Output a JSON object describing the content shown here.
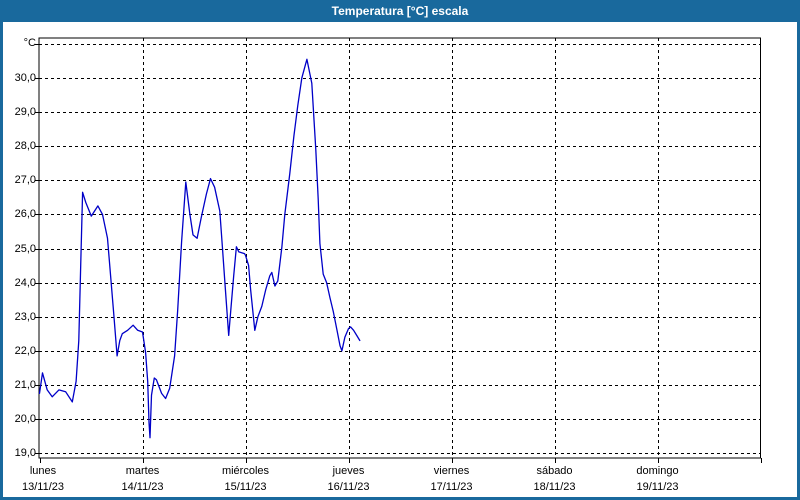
{
  "window": {
    "title": "Temperatura [°C] escala"
  },
  "colors": {
    "frame": "#19699d",
    "titlebar_bg": "#19699d",
    "title_text": "#ffffff",
    "line": "#0000c8",
    "grid": "#000000",
    "plot_bg": "#ffffff"
  },
  "chart_data": {
    "type": "line",
    "title": "Temperatura [°C] escala",
    "grid": "dashed",
    "legend": "none",
    "y_axis": {
      "unit_label": "°C",
      "ylim": [
        19,
        31
      ],
      "max_gridline": 31,
      "ticks": [
        {
          "value": 30,
          "label": "30,0"
        },
        {
          "value": 29,
          "label": "29,0"
        },
        {
          "value": 28,
          "label": "28,0"
        },
        {
          "value": 27,
          "label": "27,0"
        },
        {
          "value": 26,
          "label": "26,0"
        },
        {
          "value": 25,
          "label": "25,0"
        },
        {
          "value": 24,
          "label": "24,0"
        },
        {
          "value": 23,
          "label": "23,0"
        },
        {
          "value": 22,
          "label": "22,0"
        },
        {
          "value": 21,
          "label": "21,0"
        },
        {
          "value": 20,
          "label": "20,0"
        },
        {
          "value": 19,
          "label": "19,0"
        }
      ]
    },
    "x_axis": {
      "xlim_days": [
        0,
        7
      ],
      "days": [
        {
          "name": "lunes",
          "date": "13/11/23"
        },
        {
          "name": "martes",
          "date": "14/11/23"
        },
        {
          "name": "miércoles",
          "date": "15/11/23"
        },
        {
          "name": "jueves",
          "date": "16/11/23"
        },
        {
          "name": "viernes",
          "date": "17/11/23"
        },
        {
          "name": "sábado",
          "date": "18/11/23"
        },
        {
          "name": "domingo",
          "date": "19/11/23"
        }
      ]
    },
    "series": [
      {
        "name": "Temperatura",
        "color": "#0000c8",
        "points": [
          [
            0.0,
            20.75
          ],
          [
            0.029,
            21.35
          ],
          [
            0.075,
            20.85
          ],
          [
            0.123,
            20.65
          ],
          [
            0.188,
            20.85
          ],
          [
            0.253,
            20.8
          ],
          [
            0.318,
            20.5
          ],
          [
            0.355,
            21.1
          ],
          [
            0.382,
            22.3
          ],
          [
            0.4,
            24.5
          ],
          [
            0.418,
            26.65
          ],
          [
            0.45,
            26.35
          ],
          [
            0.503,
            25.95
          ],
          [
            0.567,
            26.25
          ],
          [
            0.612,
            26.0
          ],
          [
            0.66,
            25.3
          ],
          [
            0.69,
            24.2
          ],
          [
            0.72,
            23.1
          ],
          [
            0.753,
            21.85
          ],
          [
            0.78,
            22.3
          ],
          [
            0.804,
            22.5
          ],
          [
            0.855,
            22.6
          ],
          [
            0.909,
            22.75
          ],
          [
            0.953,
            22.6
          ],
          [
            1.0,
            22.55
          ],
          [
            1.03,
            21.95
          ],
          [
            1.05,
            21.1
          ],
          [
            1.063,
            19.9
          ],
          [
            1.073,
            19.45
          ],
          [
            1.087,
            20.7
          ],
          [
            1.115,
            21.2
          ],
          [
            1.135,
            21.15
          ],
          [
            1.185,
            20.75
          ],
          [
            1.224,
            20.6
          ],
          [
            1.264,
            20.9
          ],
          [
            1.312,
            21.85
          ],
          [
            1.342,
            23.2
          ],
          [
            1.38,
            25.2
          ],
          [
            1.42,
            26.95
          ],
          [
            1.46,
            26.0
          ],
          [
            1.49,
            25.4
          ],
          [
            1.53,
            25.3
          ],
          [
            1.57,
            25.9
          ],
          [
            1.62,
            26.6
          ],
          [
            1.66,
            27.05
          ],
          [
            1.7,
            26.8
          ],
          [
            1.75,
            26.1
          ],
          [
            1.777,
            25.0
          ],
          [
            1.8,
            24.0
          ],
          [
            1.837,
            22.45
          ],
          [
            1.86,
            23.3
          ],
          [
            1.885,
            24.2
          ],
          [
            1.912,
            25.05
          ],
          [
            1.935,
            24.9
          ],
          [
            1.99,
            24.85
          ],
          [
            2.0,
            24.8
          ],
          [
            2.03,
            24.5
          ],
          [
            2.05,
            23.8
          ],
          [
            2.09,
            22.6
          ],
          [
            2.12,
            23.0
          ],
          [
            2.158,
            23.3
          ],
          [
            2.197,
            23.8
          ],
          [
            2.236,
            24.2
          ],
          [
            2.255,
            24.3
          ],
          [
            2.285,
            23.9
          ],
          [
            2.314,
            24.05
          ],
          [
            2.353,
            25.05
          ],
          [
            2.382,
            26.0
          ],
          [
            2.43,
            27.2
          ],
          [
            2.47,
            28.3
          ],
          [
            2.508,
            29.2
          ],
          [
            2.547,
            30.0
          ],
          [
            2.596,
            30.55
          ],
          [
            2.644,
            29.85
          ],
          [
            2.683,
            27.9
          ],
          [
            2.706,
            26.45
          ],
          [
            2.722,
            25.15
          ],
          [
            2.754,
            24.25
          ],
          [
            2.787,
            24.0
          ],
          [
            2.82,
            23.55
          ],
          [
            2.852,
            23.15
          ],
          [
            2.888,
            22.6
          ],
          [
            2.917,
            22.15
          ],
          [
            2.936,
            22.0
          ],
          [
            2.965,
            22.4
          ],
          [
            3.0,
            22.65
          ],
          [
            3.02,
            22.7
          ],
          [
            3.05,
            22.6
          ],
          [
            3.08,
            22.45
          ],
          [
            3.11,
            22.3
          ]
        ]
      }
    ]
  }
}
